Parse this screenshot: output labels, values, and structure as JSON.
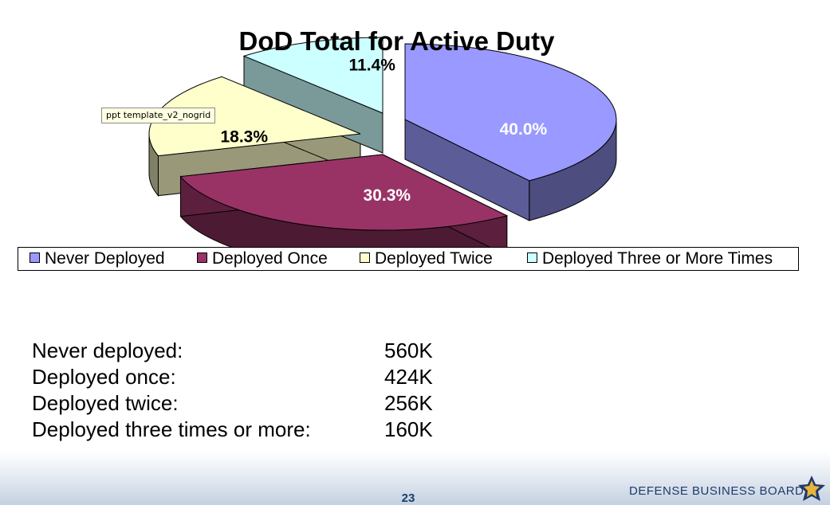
{
  "chart_data": {
    "type": "pie",
    "title": "DoD Total for Active Duty",
    "categories": [
      "Never Deployed",
      "Deployed Once",
      "Deployed Twice",
      "Deployed Three or More Times"
    ],
    "values": [
      40.0,
      30.3,
      18.3,
      11.4
    ],
    "labels": [
      "40.0%",
      "30.3%",
      "18.3%",
      "11.4%"
    ],
    "colors": [
      "#9999ff",
      "#993366",
      "#ffffcc",
      "#ccffff"
    ],
    "label_colors": [
      "#ffffff",
      "#ffffff",
      "#000000",
      "#000000"
    ],
    "legend_position": "bottom",
    "exploded": true,
    "three_d": true
  },
  "tooltip": {
    "text": "ppt template_v2_nogrid"
  },
  "stats": [
    {
      "label": "Never deployed:",
      "value": "560K"
    },
    {
      "label": "Deployed once:",
      "value": "424K"
    },
    {
      "label": "Deployed twice:",
      "value": "256K"
    },
    {
      "label": "Deployed three times or more:",
      "value": "160K"
    }
  ],
  "footer": {
    "page_number": "23",
    "org_name": "DEFENSE BUSINESS BOARD"
  }
}
